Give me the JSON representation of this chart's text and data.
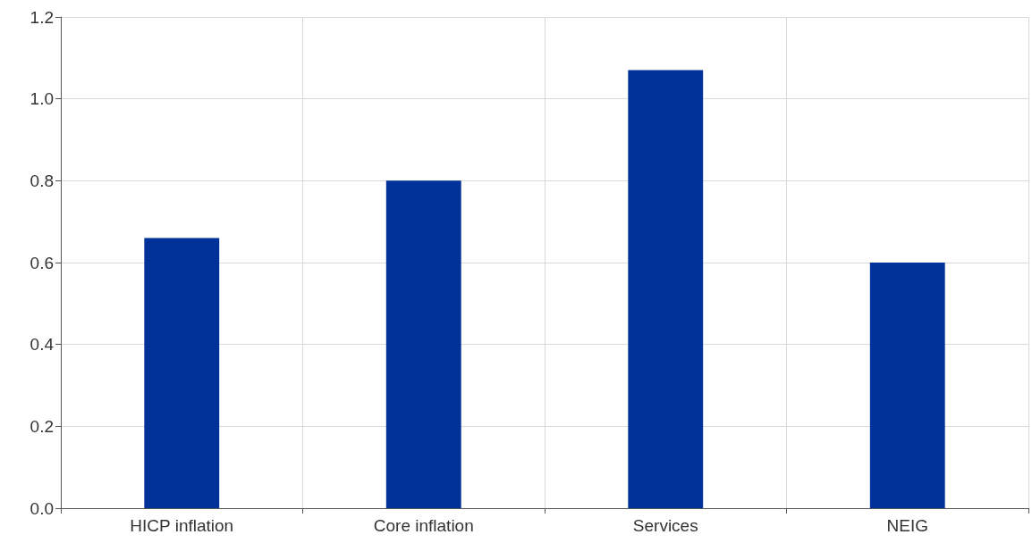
{
  "chart_data": {
    "type": "bar",
    "categories": [
      "HICP inflation",
      "Core inflation",
      "Services",
      "NEIG"
    ],
    "values": [
      0.66,
      0.8,
      1.07,
      0.6
    ],
    "color": "#003299",
    "ylim": [
      0,
      1.2
    ],
    "yticks": [
      {
        "value": 0,
        "label": "0.0"
      },
      {
        "value": 0.2,
        "label": "0.2"
      },
      {
        "value": 0.4,
        "label": "0.4"
      },
      {
        "value": 0.6,
        "label": "0.6"
      },
      {
        "value": 0.8,
        "label": "0.8"
      },
      {
        "value": 1,
        "label": "1.0"
      },
      {
        "value": 1.2,
        "label": "1.2"
      }
    ],
    "grid": true
  }
}
